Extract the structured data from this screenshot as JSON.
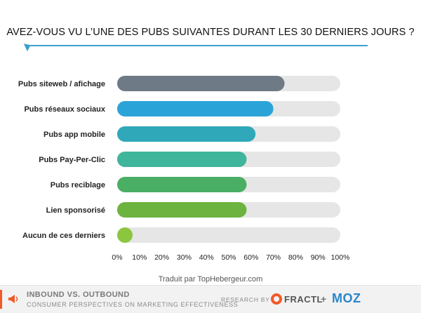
{
  "title": "AVEZ-VOUS VU L’UNE DES PUBS SUIVANTES DURANT LES 30 DERNIERS JOURS ?",
  "credit": "Traduit par TopHebergeur.com",
  "footer": {
    "title": "INBOUND VS. OUTBOUND",
    "subtitle": "CONSUMER PERSPECTIVES ON MARKETING EFFECTIVENESS",
    "research_by": "RESEARCH BY >",
    "brand1": "FRACTL",
    "plus": "+",
    "brand2": "MOZ"
  },
  "chart_data": {
    "type": "bar",
    "orientation": "horizontal",
    "categories": [
      "Pubs siteweb / afichage",
      "Pubs réseaux sociaux",
      "Pubs app mobile",
      "Pubs Pay-Per-Clic",
      "Pubs reciblage",
      "Lien sponsorisé",
      "Aucun de ces derniers"
    ],
    "values": [
      75,
      70,
      62,
      58,
      58,
      58,
      5
    ],
    "colors": [
      "#6e7a85",
      "#2aa4d8",
      "#2fa9b9",
      "#3fb59b",
      "#4aae64",
      "#6db33f",
      "#8cc63f"
    ],
    "track_color": "#e6e6e6",
    "xlim": [
      0,
      100
    ],
    "xticks": [
      "0%",
      "10%",
      "20%",
      "30%",
      "40%",
      "50%",
      "60%",
      "70%",
      "80%",
      "90%",
      "100%"
    ],
    "xlabel": "",
    "ylabel": "",
    "grid": true,
    "legend": "none"
  }
}
